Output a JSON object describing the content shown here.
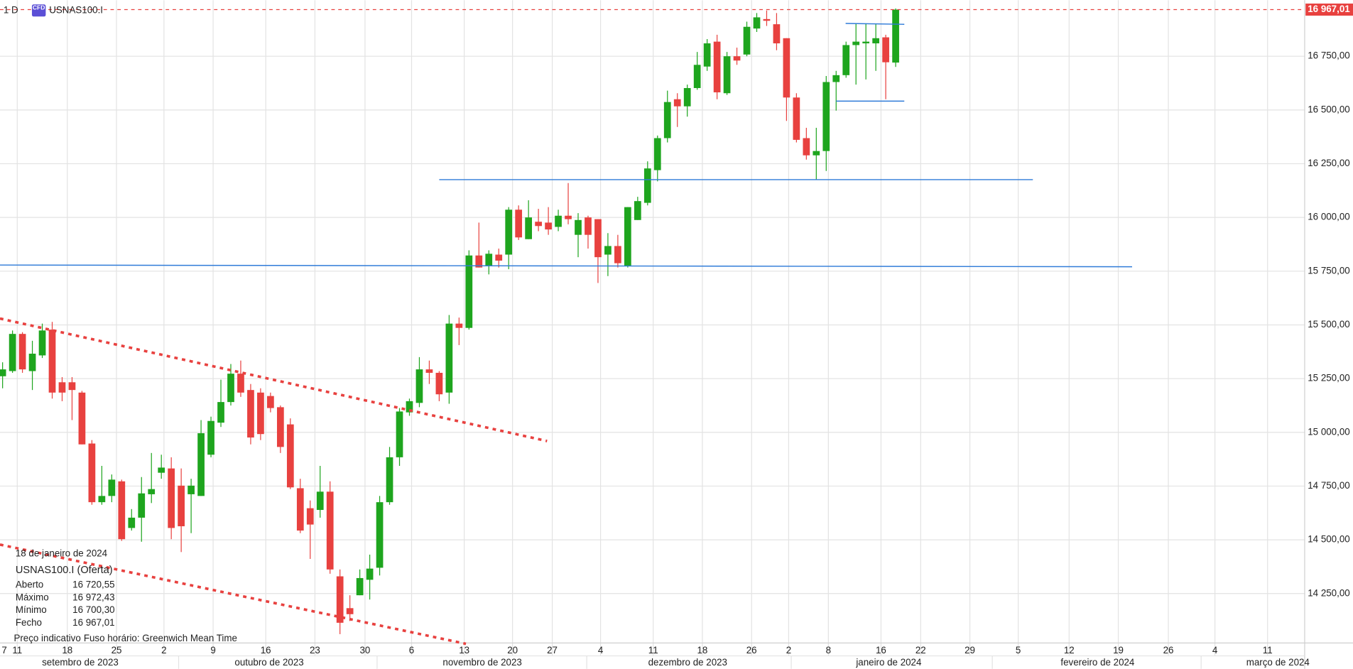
{
  "chart_data": {
    "type": "candlestick",
    "interval": "1 D",
    "badge": "CFD",
    "symbol": "USNAS100.I",
    "up_color": "#1ea51e",
    "down_color": "#e8413f",
    "open": [
      15261,
      15285,
      15458,
      15285,
      15358,
      15478,
      15233,
      15233,
      15185,
      14948,
      14675,
      14704,
      14772,
      14555,
      14603,
      14712,
      14812,
      14832,
      14752,
      14712,
      14704,
      14896,
      15045,
      15141,
      15273,
      15197,
      15185,
      15169,
      15117,
      15037,
      14740,
      14647,
      14639,
      14724,
      14330,
      14182,
      14242,
      14314,
      14370,
      14675,
      14884,
      15093,
      15137,
      15293,
      15277,
      15185,
      15506,
      15486,
      15823,
      15775,
      15827,
      15827,
      16036,
      15899,
      15980,
      15976,
      15956,
      16008,
      15919,
      16000,
      15992,
      15827,
      15867,
      15775,
      15988,
      16068,
      16220,
      16369,
      16550,
      16517,
      16602,
      16702,
      16818,
      16578,
      16750,
      16758,
      16879,
      16923,
      16899,
      16834,
      16558,
      16369,
      16289,
      16309,
      16630,
      16662,
      16802,
      16810,
      16810,
      16838,
      16720.55
    ],
    "high": [
      15326,
      15474,
      15466,
      15426,
      15506,
      15514,
      15257,
      15257,
      15193,
      14964,
      14844,
      14804,
      14780,
      14643,
      14792,
      14904,
      14896,
      14884,
      14832,
      14784,
      15057,
      15073,
      15245,
      15318,
      15334,
      15225,
      15205,
      15185,
      15125,
      15065,
      14784,
      14683,
      14844,
      14772,
      14362,
      14242,
      14362,
      14431,
      14704,
      14932,
      15113,
      15157,
      15350,
      15334,
      15285,
      15546,
      15534,
      15847,
      15976,
      15847,
      15855,
      16048,
      16056,
      16080,
      16040,
      16048,
      16036,
      16160,
      16020,
      16008,
      15992,
      15927,
      15919,
      16048,
      16096,
      16261,
      16381,
      16590,
      16578,
      16618,
      16770,
      16830,
      16850,
      16770,
      16790,
      16911,
      16951,
      16963,
      16951,
      16834,
      16578,
      16417,
      16417,
      16658,
      16682,
      16818,
      16903,
      16903,
      16899,
      16850,
      16972.43
    ],
    "low": [
      15205,
      15277,
      15277,
      15197,
      15346,
      15157,
      15145,
      15057,
      14944,
      14663,
      14663,
      14675,
      14495,
      14543,
      14491,
      14671,
      14784,
      14503,
      14443,
      14531,
      14704,
      14884,
      15025,
      15125,
      15165,
      14944,
      14964,
      15093,
      14904,
      14736,
      14531,
      14411,
      14603,
      14342,
      14061,
      14122,
      14242,
      14222,
      14334,
      14663,
      14844,
      15077,
      15117,
      15225,
      15145,
      15133,
      15406,
      15478,
      15767,
      15735,
      15767,
      15759,
      15895,
      15899,
      15936,
      15919,
      15936,
      15968,
      15815,
      15855,
      15695,
      15727,
      15767,
      15767,
      15988,
      16056,
      16168,
      16349,
      16421,
      16469,
      16594,
      16682,
      16550,
      16570,
      16710,
      16750,
      16863,
      16891,
      16778,
      16449,
      16349,
      16269,
      16176,
      16216,
      16497,
      16650,
      16618,
      16642,
      16682,
      16550,
      16700.3
    ],
    "close": [
      15293,
      15458,
      15293,
      15366,
      15474,
      15185,
      15185,
      15197,
      14944,
      14675,
      14704,
      14780,
      14503,
      14603,
      14716,
      14736,
      14836,
      14555,
      14563,
      14752,
      14996,
      15053,
      15141,
      15273,
      15185,
      14976,
      14992,
      15113,
      14932,
      14744,
      14543,
      14571,
      14724,
      14362,
      14114,
      14154,
      14322,
      14366,
      14675,
      14884,
      15097,
      15145,
      15293,
      15277,
      15177,
      15506,
      15486,
      15823,
      15767,
      15831,
      15799,
      16036,
      15907,
      16000,
      15960,
      15944,
      16008,
      15992,
      15988,
      15919,
      15815,
      15867,
      15787,
      16048,
      16076,
      16228,
      16369,
      16537,
      16517,
      16602,
      16710,
      16810,
      16582,
      16750,
      16730,
      16887,
      16931,
      16915,
      16810,
      16558,
      16361,
      16289,
      16309,
      16630,
      16662,
      16802,
      16818,
      16818,
      16834,
      16722,
      16967.01
    ],
    "ylim": [
      14020,
      17011
    ],
    "yticks": [
      {
        "value": 14250,
        "label": "14 250,00"
      },
      {
        "value": 14500,
        "label": "14 500,00"
      },
      {
        "value": 14750,
        "label": "14 750,00"
      },
      {
        "value": 15000,
        "label": "15 000,00"
      },
      {
        "value": 15250,
        "label": "15 250,00"
      },
      {
        "value": 15500,
        "label": "15 500,00"
      },
      {
        "value": 15750,
        "label": "15 750,00"
      },
      {
        "value": 16000,
        "label": "16 000,00"
      },
      {
        "value": 16250,
        "label": "16 250,00"
      },
      {
        "value": 16500,
        "label": "16 500,00"
      },
      {
        "value": 16750,
        "label": "16 750,00"
      }
    ],
    "last_price": {
      "value": 16967.01,
      "label": "16 967,01"
    },
    "grid": true,
    "day_labels": [
      "7",
      "11",
      "18",
      "25",
      "2",
      "9",
      "16",
      "23",
      "30",
      "6",
      "13",
      "20",
      "27",
      "4",
      "11",
      "18",
      "26",
      "2",
      "8",
      "16",
      "22",
      "29",
      "5",
      "12",
      "19",
      "26",
      "4",
      "11"
    ],
    "month_labels": [
      "setembro de 2023",
      "outubro de 2023",
      "novembro de 2023",
      "dezembro de 2023",
      "janeiro de 2024",
      "fevereiro de 2024",
      "março de 2024"
    ],
    "tooltip": {
      "date": "18 de janeiro de 2024",
      "title": "USNAS100.I (Oferta)",
      "rows": [
        {
          "label": "Aberto",
          "value": "16 720,55"
        },
        {
          "label": "Máximo",
          "value": "16 972,43"
        },
        {
          "label": "Mínimo",
          "value": "16 700,30"
        },
        {
          "label": "Fecho",
          "value": "16 967,01"
        }
      ]
    },
    "footer": [
      "Preço indicativo",
      "Fuso horário: Greenwich Mean Time"
    ]
  }
}
